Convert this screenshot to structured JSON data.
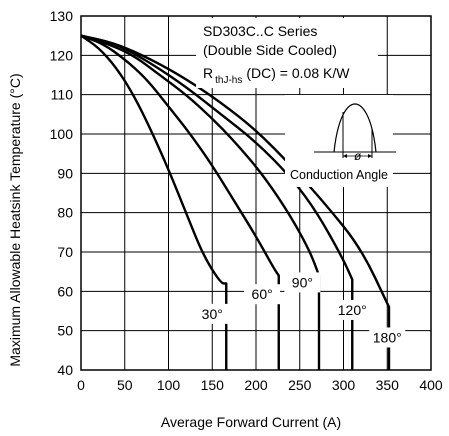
{
  "chart_data": {
    "type": "line",
    "title_lines": [
      "SD303C..C Series",
      "(Double Side Cooled)"
    ],
    "rth_main": "R",
    "rth_sub": "thJ-hs",
    "rth_rest": "(DC) = 0.08 K/W",
    "xlabel": "Average Forward Current (A)",
    "ylabel": "Maximum Allowable Heatsink Temperature (°C)",
    "xlim": [
      0,
      400
    ],
    "ylim": [
      40,
      130
    ],
    "xticks": [
      0,
      50,
      100,
      150,
      200,
      250,
      300,
      350,
      400
    ],
    "yticks": [
      40,
      50,
      60,
      70,
      80,
      90,
      100,
      110,
      120,
      130
    ],
    "grid": true,
    "inset_label": "Conduction Angle",
    "inset_symbol": "ø",
    "series": [
      {
        "name": "30°",
        "x": [
          0,
          20,
          40,
          60,
          80,
          100,
          120,
          140,
          160,
          166,
          166
        ],
        "y": [
          125,
          122,
          117,
          110,
          101,
          91,
          80,
          69,
          62,
          62,
          40
        ]
      },
      {
        "name": "60°",
        "x": [
          0,
          25,
          50,
          75,
          100,
          125,
          150,
          175,
          200,
          220,
          226,
          226
        ],
        "y": [
          125,
          123,
          119,
          114,
          107,
          100,
          92,
          83,
          74,
          66,
          64,
          40
        ]
      },
      {
        "name": "90°",
        "x": [
          0,
          30,
          60,
          90,
          120,
          150,
          180,
          210,
          240,
          262,
          272,
          272
        ],
        "y": [
          125,
          123,
          120,
          115,
          110,
          104,
          97,
          89,
          79,
          70,
          64,
          40
        ]
      },
      {
        "name": "120°",
        "x": [
          0,
          40,
          80,
          120,
          160,
          200,
          240,
          270,
          300,
          310,
          310
        ],
        "y": [
          125,
          123,
          118,
          112,
          105,
          98,
          89,
          80,
          68,
          63,
          40
        ]
      },
      {
        "name": "180°",
        "x": [
          0,
          40,
          80,
          120,
          160,
          200,
          240,
          280,
          320,
          352,
          352
        ],
        "y": [
          125,
          123,
          119,
          114,
          108,
          101,
          92,
          82,
          71,
          56,
          40
        ]
      }
    ],
    "label_positions": [
      {
        "x": 150,
        "y": 53
      },
      {
        "x": 207,
        "y": 58
      },
      {
        "x": 253,
        "y": 61
      },
      {
        "x": 310,
        "y": 54
      },
      {
        "x": 350,
        "y": 47
      }
    ]
  }
}
